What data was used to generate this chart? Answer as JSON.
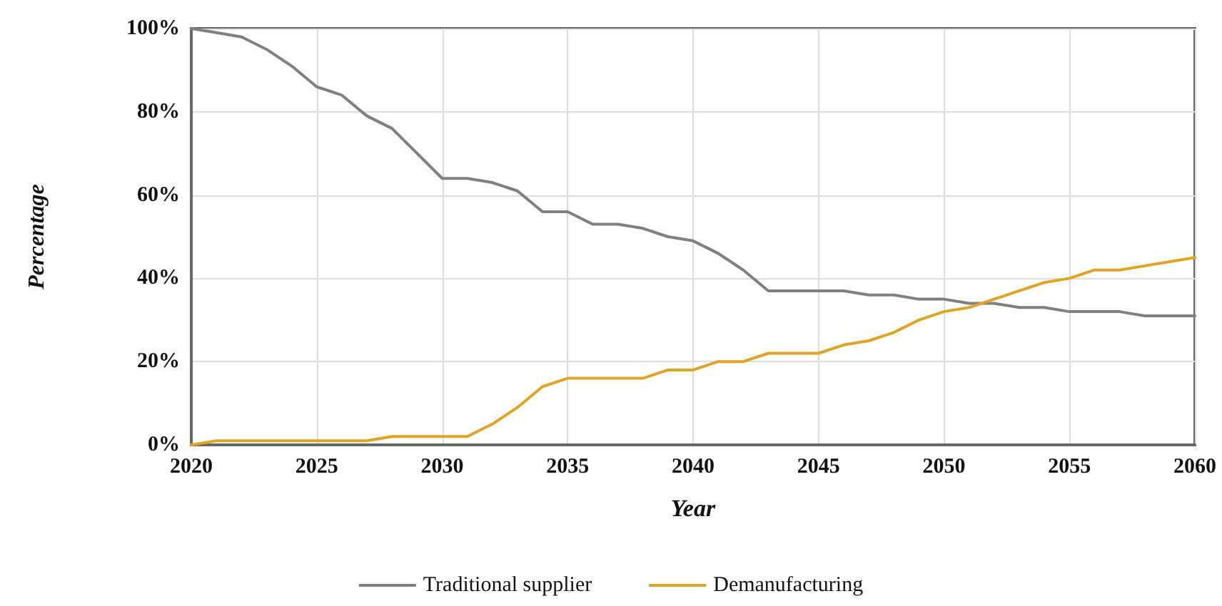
{
  "chart_data": {
    "type": "line",
    "xlabel": "Year",
    "ylabel": "Percentage",
    "x": [
      2020,
      2021,
      2022,
      2023,
      2024,
      2025,
      2026,
      2027,
      2028,
      2029,
      2030,
      2031,
      2032,
      2033,
      2034,
      2035,
      2036,
      2037,
      2038,
      2039,
      2040,
      2041,
      2042,
      2043,
      2044,
      2045,
      2046,
      2047,
      2048,
      2049,
      2050,
      2051,
      2052,
      2053,
      2054,
      2055,
      2056,
      2057,
      2058,
      2059,
      2060
    ],
    "series": [
      {
        "name": "Traditional supplier",
        "color": "#808080",
        "values": [
          100,
          99,
          98,
          95,
          91,
          86,
          84,
          79,
          76,
          70,
          64,
          64,
          63,
          61,
          56,
          56,
          53,
          53,
          52,
          50,
          49,
          46,
          42,
          37,
          37,
          37,
          37,
          36,
          36,
          35,
          35,
          34,
          34,
          33,
          33,
          32,
          32,
          32,
          31,
          31,
          31
        ]
      },
      {
        "name": "Demanufacturing",
        "color": "#e0a526",
        "values": [
          0,
          1,
          1,
          1,
          1,
          1,
          1,
          1,
          2,
          2,
          2,
          2,
          5,
          9,
          14,
          16,
          16,
          16,
          16,
          18,
          18,
          20,
          20,
          22,
          22,
          22,
          24,
          25,
          27,
          30,
          32,
          33,
          35,
          37,
          39,
          40,
          42,
          42,
          43,
          44,
          45
        ]
      }
    ],
    "xlim": [
      2020,
      2060
    ],
    "xticks": [
      2020,
      2025,
      2030,
      2035,
      2040,
      2045,
      2050,
      2055,
      2060
    ],
    "ylim": [
      0,
      100
    ],
    "yticks": [
      {
        "value": 0,
        "label": "0%"
      },
      {
        "value": 20,
        "label": "20%"
      },
      {
        "value": 40,
        "label": "40%"
      },
      {
        "value": 60,
        "label": "60%"
      },
      {
        "value": 80,
        "label": "80%"
      },
      {
        "value": 100,
        "label": "100%"
      }
    ],
    "grid": true,
    "legend": "bottom",
    "marker": "none",
    "line_style": "solid"
  }
}
